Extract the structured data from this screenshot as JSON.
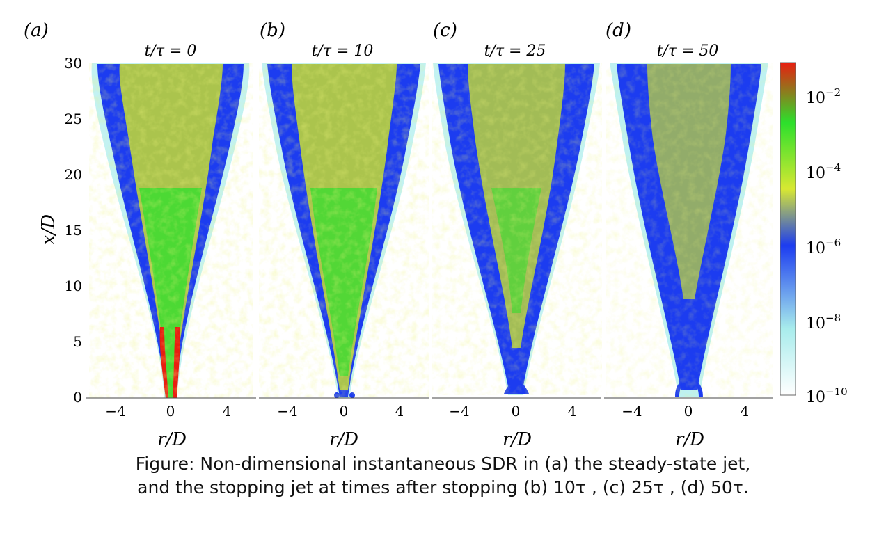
{
  "panels": [
    {
      "letter": "a",
      "time_label": "t/τ = 0",
      "t": 0
    },
    {
      "letter": "b",
      "time_label": "t/τ = 10",
      "t": 10
    },
    {
      "letter": "c",
      "time_label": "t/τ = 25",
      "t": 25
    },
    {
      "letter": "d",
      "time_label": "t/τ = 50",
      "t": 50
    }
  ],
  "axes": {
    "y_label": "x/D",
    "x_label": "r/D",
    "y_ticks": [
      "0",
      "5",
      "10",
      "15",
      "20",
      "25",
      "30"
    ],
    "x_ticks": [
      "−4",
      "0",
      "4"
    ]
  },
  "colorbar": {
    "scale": "log",
    "tick_base": "10",
    "tick_exponents": [
      "−2",
      "−4",
      "−6",
      "−8",
      "−10"
    ],
    "colors": [
      "#ffffff",
      "#a8ecec",
      "#1c3cf0",
      "#d8e832",
      "#2ce02c",
      "#e81e10"
    ]
  },
  "caption": {
    "line1": "Figure: Non-dimensional instantaneous SDR in (a) the steady-state jet,",
    "line2": "and the stopping jet at times after stopping (b) 10τ , (c) 25τ , (d) 50τ."
  }
}
